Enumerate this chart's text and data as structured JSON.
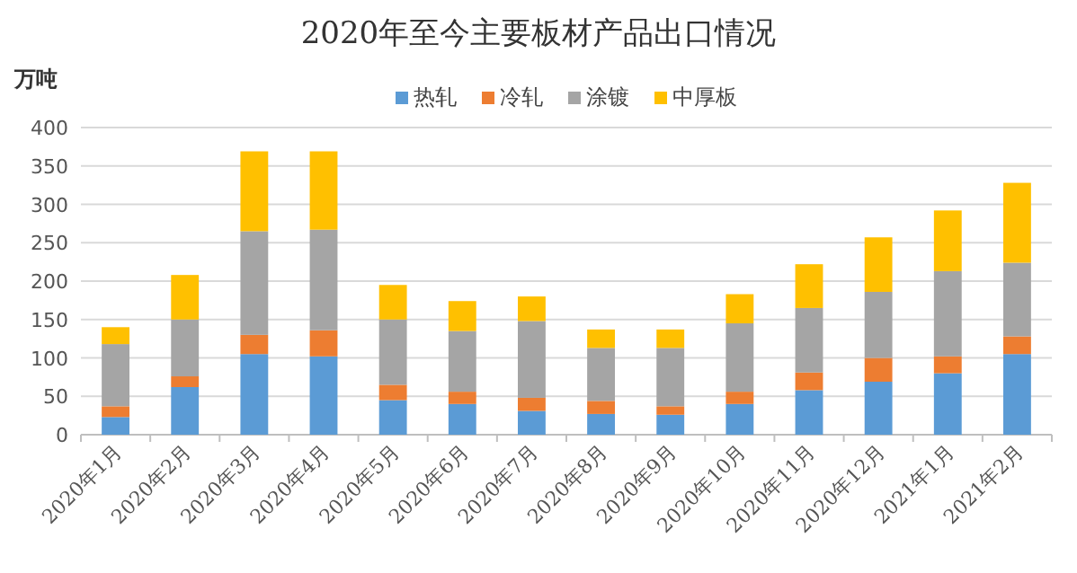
{
  "chart_data": {
    "type": "bar",
    "stacked": true,
    "title": "2020年至今主要板材产品出口情况",
    "ylabel": "万吨",
    "categories": [
      "2020年1月",
      "2020年2月",
      "2020年3月",
      "2020年4月",
      "2020年5月",
      "2020年6月",
      "2020年7月",
      "2020年8月",
      "2020年9月",
      "2020年10月",
      "2020年11月",
      "2020年12月",
      "2021年1月",
      "2021年2月"
    ],
    "series": [
      {
        "name": "热轧",
        "color": "#5b9bd5",
        "values": [
          23,
          62,
          105,
          102,
          45,
          40,
          31,
          27,
          26,
          40,
          58,
          69,
          80,
          105
        ]
      },
      {
        "name": "冷轧",
        "color": "#ed7d31",
        "values": [
          14,
          14,
          25,
          34,
          20,
          16,
          17,
          17,
          11,
          16,
          23,
          31,
          22,
          23
        ]
      },
      {
        "name": "涂镀",
        "color": "#a5a5a5",
        "values": [
          81,
          74,
          135,
          131,
          85,
          79,
          100,
          69,
          76,
          89,
          84,
          86,
          111,
          96
        ]
      },
      {
        "name": "中厚板",
        "color": "#ffc000",
        "values": [
          22,
          58,
          104,
          102,
          45,
          39,
          32,
          24,
          24,
          38,
          57,
          71,
          79,
          104
        ]
      }
    ],
    "ylim": [
      0,
      400
    ],
    "yticks": [
      0,
      50,
      100,
      150,
      200,
      250,
      300,
      350,
      400
    ],
    "grid": "y",
    "legend": "top"
  }
}
